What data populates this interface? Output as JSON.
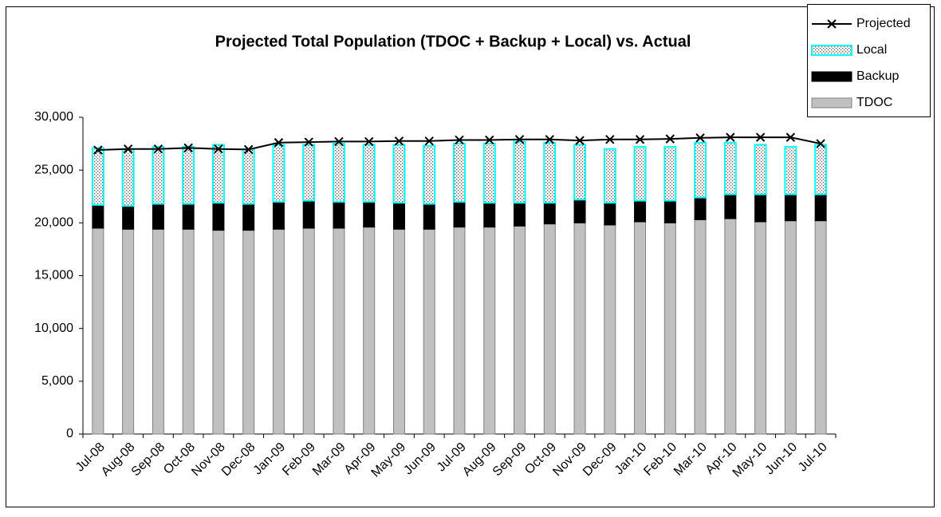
{
  "chart_data": {
    "type": "stacked-bar-line",
    "title": "Projected Total Population (TDOC + Backup + Local) vs. Actual",
    "categories": [
      "Jul-08",
      "Aug-08",
      "Sep-08",
      "Oct-08",
      "Nov-08",
      "Dec-08",
      "Jan-09",
      "Feb-09",
      "Mar-09",
      "Apr-09",
      "May-09",
      "Jun-09",
      "Jul-09",
      "Aug-09",
      "Sep-09",
      "Oct-09",
      "Nov-09",
      "Dec-09",
      "Jan-10",
      "Feb-10",
      "Mar-10",
      "Apr-10",
      "May-10",
      "Jun-10",
      "Jul-10"
    ],
    "series": [
      {
        "name": "TDOC",
        "color": "#c0c0c0",
        "values": [
          19500,
          19400,
          19400,
          19400,
          19300,
          19300,
          19400,
          19500,
          19500,
          19600,
          19400,
          19400,
          19600,
          19600,
          19700,
          19900,
          20000,
          19800,
          20100,
          20000,
          20300,
          20400,
          20100,
          20200,
          20200
        ]
      },
      {
        "name": "Backup",
        "color": "#000000",
        "values": [
          2200,
          2200,
          2400,
          2400,
          2600,
          2500,
          2600,
          2600,
          2500,
          2400,
          2500,
          2400,
          2400,
          2300,
          2200,
          2000,
          2200,
          2100,
          2000,
          2100,
          2100,
          2300,
          2600,
          2500,
          2500
        ]
      },
      {
        "name": "Local",
        "color": "#00ffff",
        "values": [
          5400,
          5400,
          5400,
          5400,
          5500,
          5200,
          5400,
          5300,
          5500,
          5400,
          5500,
          5500,
          5500,
          5600,
          5800,
          5700,
          5200,
          5100,
          5100,
          5100,
          5200,
          4900,
          4700,
          4500,
          4700
        ]
      },
      {
        "name": "Projected",
        "color": "#000000",
        "type": "line",
        "values": [
          26900,
          27000,
          27000,
          27100,
          27000,
          26950,
          27600,
          27650,
          27700,
          27700,
          27750,
          27750,
          27850,
          27850,
          27900,
          27900,
          27800,
          27900,
          27900,
          27950,
          28050,
          28100,
          28100,
          28100,
          27500
        ]
      }
    ],
    "ylim": [
      0,
      30000
    ],
    "yticks": [
      0,
      {
        "value": 5000,
        "label": "5,000"
      },
      {
        "value": 10000,
        "label": "10,000"
      },
      {
        "value": 15000,
        "label": "15,000"
      },
      {
        "value": 20000,
        "label": "20,000"
      },
      {
        "value": 25000,
        "label": "25,000"
      },
      {
        "value": 30000,
        "label": "30,000"
      }
    ],
    "grid": false
  }
}
